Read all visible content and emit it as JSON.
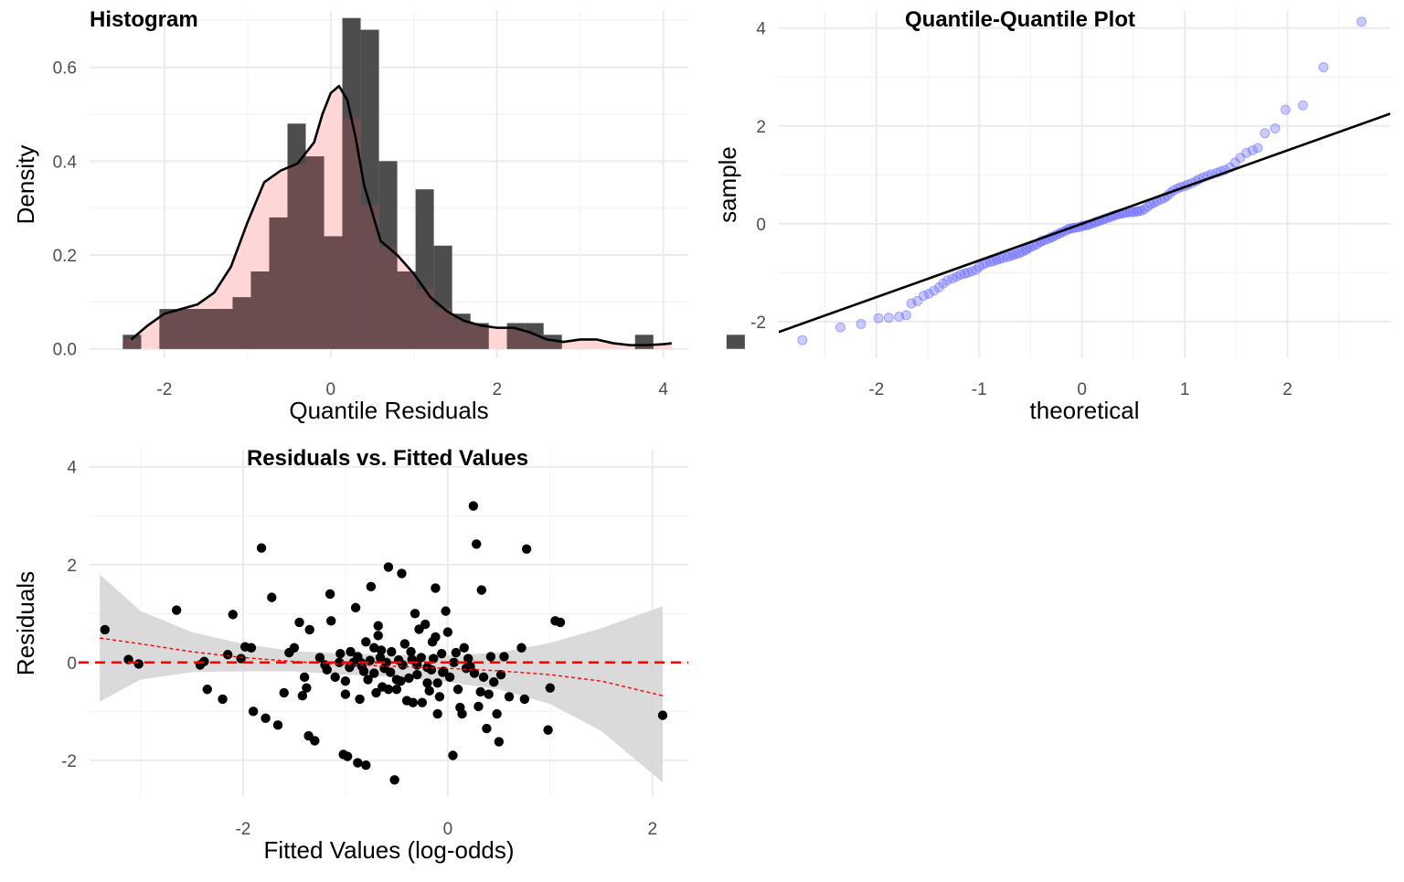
{
  "colors": {
    "hist_bar": "#4d4d4d",
    "hist_density_fill": "#ffd6d6",
    "hist_overlap": "#6b4c4f",
    "density_line": "#000000",
    "qq_point": "#6666ff",
    "qq_line": "#000000",
    "resid_point": "#000000",
    "zero_line": "#ff0000",
    "loess_line": "#ff0000",
    "ci_band": "#d3d3d3"
  },
  "chart_data": [
    {
      "type": "bar",
      "title": "Histogram",
      "xlabel": "Quantile Residuals",
      "ylabel": "Density",
      "xlim": [
        -2.9,
        4.3
      ],
      "ylim": [
        -0.02,
        0.72
      ],
      "xticks": [
        -2,
        0,
        2,
        4
      ],
      "yticks": [
        0.0,
        0.2,
        0.4,
        0.6
      ],
      "ytick_labels": [
        "0.0",
        "0.2",
        "0.4",
        "0.6"
      ],
      "bin_width": 0.22,
      "bin_start": -2.5,
      "values": [
        0.03,
        0.0,
        0.085,
        0.085,
        0.085,
        0.085,
        0.11,
        0.165,
        0.28,
        0.48,
        0.41,
        0.24,
        0.705,
        0.68,
        0.4,
        0.165,
        0.34,
        0.22,
        0.075,
        0.055,
        0.0,
        0.055,
        0.055,
        0.03,
        0.0,
        0.0,
        0.0,
        0.0,
        0.03,
        0.0,
        0.0,
        0.0,
        0.0,
        0.03
      ],
      "density_curve": {
        "x": [
          -2.4,
          -2.2,
          -2.0,
          -1.8,
          -1.6,
          -1.4,
          -1.2,
          -1.0,
          -0.8,
          -0.6,
          -0.4,
          -0.2,
          -0.1,
          0.0,
          0.1,
          0.2,
          0.3,
          0.4,
          0.6,
          0.8,
          1.0,
          1.2,
          1.4,
          1.6,
          1.8,
          2.0,
          2.2,
          2.4,
          2.6,
          2.8,
          3.0,
          3.2,
          3.4,
          3.6,
          3.8,
          4.0,
          4.1
        ],
        "y": [
          0.02,
          0.05,
          0.075,
          0.085,
          0.095,
          0.12,
          0.175,
          0.27,
          0.355,
          0.38,
          0.395,
          0.44,
          0.5,
          0.545,
          0.56,
          0.53,
          0.45,
          0.35,
          0.23,
          0.2,
          0.16,
          0.11,
          0.08,
          0.06,
          0.05,
          0.045,
          0.045,
          0.035,
          0.02,
          0.015,
          0.02,
          0.02,
          0.012,
          0.008,
          0.008,
          0.01,
          0.012
        ]
      }
    },
    {
      "type": "scatter",
      "title": "Quantile-Quantile Plot",
      "xlabel": "theoretical",
      "ylabel": "sample",
      "xlim": [
        -2.95,
        3.0
      ],
      "ylim": [
        -2.75,
        4.35
      ],
      "xticks": [
        -2,
        -1,
        0,
        1,
        2
      ],
      "yticks": [
        -2,
        0,
        2,
        4
      ],
      "points": [
        [
          -2.72,
          -2.38
        ],
        [
          -2.35,
          -2.12
        ],
        [
          -2.15,
          -2.05
        ],
        [
          -1.98,
          -1.93
        ],
        [
          -1.88,
          -1.92
        ],
        [
          -1.78,
          -1.9
        ],
        [
          -1.71,
          -1.87
        ],
        [
          -1.66,
          -1.63
        ],
        [
          -1.6,
          -1.58
        ],
        [
          -1.54,
          -1.47
        ],
        [
          -1.49,
          -1.43
        ],
        [
          -1.44,
          -1.37
        ],
        [
          -1.39,
          -1.3
        ],
        [
          -1.35,
          -1.22
        ],
        [
          -1.31,
          -1.16
        ],
        [
          -1.26,
          -1.12
        ],
        [
          -1.22,
          -1.08
        ],
        [
          -1.18,
          -1.04
        ],
        [
          -1.14,
          -1.02
        ],
        [
          -1.11,
          -1.0
        ],
        [
          -1.07,
          -0.97
        ],
        [
          -1.03,
          -0.94
        ],
        [
          -1.0,
          -0.88
        ],
        [
          -0.96,
          -0.83
        ],
        [
          -0.93,
          -0.8
        ],
        [
          -0.89,
          -0.78
        ],
        [
          -0.86,
          -0.76
        ],
        [
          -0.83,
          -0.74
        ],
        [
          -0.8,
          -0.72
        ],
        [
          -0.77,
          -0.7
        ],
        [
          -0.73,
          -0.68
        ],
        [
          -0.7,
          -0.66
        ],
        [
          -0.67,
          -0.64
        ],
        [
          -0.64,
          -0.62
        ],
        [
          -0.61,
          -0.6
        ],
        [
          -0.58,
          -0.57
        ],
        [
          -0.55,
          -0.54
        ],
        [
          -0.53,
          -0.51
        ],
        [
          -0.5,
          -0.48
        ],
        [
          -0.47,
          -0.45
        ],
        [
          -0.44,
          -0.42
        ],
        [
          -0.41,
          -0.38
        ],
        [
          -0.39,
          -0.35
        ],
        [
          -0.36,
          -0.33
        ],
        [
          -0.33,
          -0.31
        ],
        [
          -0.3,
          -0.28
        ],
        [
          -0.28,
          -0.26
        ],
        [
          -0.25,
          -0.23
        ],
        [
          -0.22,
          -0.2
        ],
        [
          -0.2,
          -0.18
        ],
        [
          -0.17,
          -0.15
        ],
        [
          -0.14,
          -0.12
        ],
        [
          -0.12,
          -0.1
        ],
        [
          -0.09,
          -0.09
        ],
        [
          -0.07,
          -0.08
        ],
        [
          -0.04,
          -0.07
        ],
        [
          -0.01,
          -0.06
        ],
        [
          0.01,
          -0.04
        ],
        [
          0.04,
          -0.03
        ],
        [
          0.06,
          -0.02
        ],
        [
          0.09,
          0.0
        ],
        [
          0.12,
          0.02
        ],
        [
          0.14,
          0.04
        ],
        [
          0.17,
          0.06
        ],
        [
          0.2,
          0.08
        ],
        [
          0.22,
          0.1
        ],
        [
          0.25,
          0.12
        ],
        [
          0.28,
          0.14
        ],
        [
          0.3,
          0.16
        ],
        [
          0.33,
          0.18
        ],
        [
          0.36,
          0.2
        ],
        [
          0.39,
          0.21
        ],
        [
          0.41,
          0.22
        ],
        [
          0.44,
          0.23
        ],
        [
          0.47,
          0.24
        ],
        [
          0.5,
          0.24
        ],
        [
          0.53,
          0.25
        ],
        [
          0.55,
          0.26
        ],
        [
          0.58,
          0.27
        ],
        [
          0.61,
          0.3
        ],
        [
          0.64,
          0.35
        ],
        [
          0.67,
          0.4
        ],
        [
          0.7,
          0.43
        ],
        [
          0.73,
          0.46
        ],
        [
          0.77,
          0.5
        ],
        [
          0.8,
          0.53
        ],
        [
          0.83,
          0.57
        ],
        [
          0.86,
          0.63
        ],
        [
          0.89,
          0.68
        ],
        [
          0.93,
          0.72
        ],
        [
          0.96,
          0.75
        ],
        [
          1.0,
          0.77
        ],
        [
          1.03,
          0.8
        ],
        [
          1.07,
          0.83
        ],
        [
          1.11,
          0.87
        ],
        [
          1.14,
          0.91
        ],
        [
          1.18,
          0.95
        ],
        [
          1.22,
          0.98
        ],
        [
          1.26,
          1.01
        ],
        [
          1.31,
          1.04
        ],
        [
          1.35,
          1.07
        ],
        [
          1.39,
          1.1
        ],
        [
          1.44,
          1.15
        ],
        [
          1.49,
          1.25
        ],
        [
          1.54,
          1.35
        ],
        [
          1.6,
          1.45
        ],
        [
          1.66,
          1.5
        ],
        [
          1.71,
          1.55
        ],
        [
          1.78,
          1.85
        ],
        [
          1.88,
          1.95
        ],
        [
          1.98,
          2.33
        ],
        [
          2.15,
          2.42
        ],
        [
          2.35,
          3.2
        ],
        [
          2.72,
          4.13
        ]
      ],
      "reference_line": {
        "intercept": 0.0,
        "slope": 0.75
      }
    },
    {
      "type": "scatter",
      "title": "Residuals vs. Fitted Values",
      "xlabel": "Fitted Values (log-odds)",
      "ylabel": "Residuals",
      "xlim": [
        -3.5,
        2.35
      ],
      "ylim": [
        -2.75,
        4.35
      ],
      "xticks": [
        -2,
        0,
        2
      ],
      "yticks": [
        -2,
        0,
        2,
        4
      ],
      "points": [
        [
          -3.35,
          0.67
        ],
        [
          -3.12,
          0.06
        ],
        [
          -3.02,
          -0.03
        ],
        [
          -2.65,
          1.07
        ],
        [
          -2.42,
          -0.05
        ],
        [
          -2.35,
          -0.55
        ],
        [
          -2.38,
          0.02
        ],
        [
          -2.2,
          -0.75
        ],
        [
          -2.15,
          0.16
        ],
        [
          -2.1,
          0.98
        ],
        [
          -2.02,
          0.08
        ],
        [
          -1.98,
          0.32
        ],
        [
          -1.92,
          0.3
        ],
        [
          -1.9,
          -1.0
        ],
        [
          -1.82,
          2.34
        ],
        [
          -1.78,
          -1.14
        ],
        [
          -1.72,
          1.33
        ],
        [
          -1.66,
          -1.28
        ],
        [
          -1.55,
          0.2
        ],
        [
          -1.6,
          -0.62
        ],
        [
          -1.5,
          0.3
        ],
        [
          -1.45,
          0.82
        ],
        [
          -1.42,
          -0.68
        ],
        [
          -1.38,
          -0.52
        ],
        [
          -1.35,
          0.67
        ],
        [
          -1.36,
          -1.5
        ],
        [
          -1.3,
          -1.6
        ],
        [
          -1.2,
          -0.05
        ],
        [
          -1.15,
          1.4
        ],
        [
          -1.14,
          0.85
        ],
        [
          -1.1,
          -0.3
        ],
        [
          -1.06,
          0.0
        ],
        [
          -1.02,
          -1.88
        ],
        [
          -1.0,
          -0.38
        ],
        [
          -0.98,
          -1.92
        ],
        [
          -0.95,
          0.22
        ],
        [
          -0.9,
          1.12
        ],
        [
          -0.88,
          -2.05
        ],
        [
          -0.85,
          0.0
        ],
        [
          -0.82,
          -0.18
        ],
        [
          -0.8,
          -2.1
        ],
        [
          -0.8,
          0.42
        ],
        [
          -0.75,
          1.55
        ],
        [
          -0.78,
          -0.35
        ],
        [
          -0.72,
          0.3
        ],
        [
          -0.7,
          -0.62
        ],
        [
          -0.68,
          0.75
        ],
        [
          -0.64,
          -0.5
        ],
        [
          -0.6,
          0.0
        ],
        [
          -0.58,
          1.95
        ],
        [
          -0.55,
          0.22
        ],
        [
          -0.52,
          -2.4
        ],
        [
          -0.5,
          -0.35
        ],
        [
          -0.5,
          -0.55
        ],
        [
          -0.45,
          1.82
        ],
        [
          -0.42,
          0.38
        ],
        [
          -0.4,
          -0.78
        ],
        [
          -0.38,
          -0.32
        ],
        [
          -0.35,
          0.06
        ],
        [
          -0.32,
          1.0
        ],
        [
          -0.3,
          -0.25
        ],
        [
          -0.28,
          0.68
        ],
        [
          -0.25,
          -0.82
        ],
        [
          -0.22,
          0.78
        ],
        [
          -0.2,
          -0.1
        ],
        [
          -0.18,
          -0.58
        ],
        [
          -0.15,
          0.42
        ],
        [
          -0.12,
          1.52
        ],
        [
          -0.1,
          -0.42
        ],
        [
          -0.08,
          -0.7
        ],
        [
          -0.06,
          0.18
        ],
        [
          -0.05,
          -0.2
        ],
        [
          -0.02,
          1.05
        ],
        [
          0.0,
          0.62
        ],
        [
          0.02,
          -0.3
        ],
        [
          0.05,
          -1.9
        ],
        [
          0.08,
          0.2
        ],
        [
          0.1,
          -0.55
        ],
        [
          0.12,
          -0.92
        ],
        [
          0.14,
          -1.05
        ],
        [
          0.16,
          0.3
        ],
        [
          0.2,
          0.08
        ],
        [
          0.22,
          -0.08
        ],
        [
          0.25,
          3.2
        ],
        [
          0.28,
          2.42
        ],
        [
          0.3,
          -0.9
        ],
        [
          0.32,
          -0.6
        ],
        [
          0.33,
          1.48
        ],
        [
          0.38,
          -1.35
        ],
        [
          0.4,
          -0.65
        ],
        [
          0.42,
          0.12
        ],
        [
          0.45,
          -0.4
        ],
        [
          0.48,
          -1.05
        ],
        [
          0.5,
          -1.62
        ],
        [
          0.52,
          -0.25
        ],
        [
          0.55,
          0.12
        ],
        [
          0.6,
          -0.7
        ],
        [
          0.72,
          0.3
        ],
        [
          0.75,
          -0.75
        ],
        [
          0.77,
          2.32
        ],
        [
          0.98,
          -1.38
        ],
        [
          1.0,
          -0.52
        ],
        [
          1.05,
          0.85
        ],
        [
          1.1,
          0.82
        ],
        [
          2.1,
          -1.08
        ],
        [
          -0.92,
          0.0
        ],
        [
          -0.88,
          0.12
        ],
        [
          -0.84,
          -0.08
        ],
        [
          -0.76,
          0.04
        ],
        [
          -0.66,
          0.1
        ],
        [
          -0.62,
          -0.12
        ],
        [
          -0.56,
          -0.2
        ],
        [
          -0.44,
          -0.05
        ],
        [
          -0.36,
          0.22
        ],
        [
          -0.26,
          0.1
        ],
        [
          -0.16,
          -0.15
        ],
        [
          -0.04,
          -0.18
        ],
        [
          0.06,
          0.0
        ],
        [
          0.18,
          -0.12
        ],
        [
          -1.25,
          0.1
        ],
        [
          -1.18,
          -0.15
        ],
        [
          -1.05,
          0.18
        ],
        [
          -0.96,
          -0.1
        ],
        [
          -0.72,
          -0.22
        ],
        [
          -0.48,
          0.05
        ],
        [
          -0.3,
          -0.05
        ],
        [
          -0.14,
          0.08
        ],
        [
          0.26,
          -0.22
        ],
        [
          0.35,
          -0.3
        ],
        [
          -0.58,
          -0.55
        ],
        [
          -0.46,
          -0.38
        ],
        [
          -0.2,
          -0.42
        ],
        [
          -0.65,
          0.25
        ],
        [
          -1.4,
          -0.3
        ],
        [
          -1.0,
          -0.65
        ],
        [
          -0.86,
          -0.75
        ],
        [
          -0.34,
          -0.82
        ],
        [
          -0.1,
          -1.05
        ],
        [
          -0.68,
          0.55
        ],
        [
          -0.12,
          0.52
        ]
      ],
      "zero_line": 0,
      "loess": {
        "x": [
          -3.4,
          -3.0,
          -2.5,
          -2.0,
          -1.5,
          -1.0,
          -0.5,
          0.0,
          0.5,
          1.0,
          1.5,
          2.1
        ],
        "y": [
          0.5,
          0.38,
          0.22,
          0.1,
          0.02,
          -0.04,
          -0.08,
          -0.12,
          -0.17,
          -0.25,
          -0.38,
          -0.68
        ],
        "upper": [
          1.8,
          1.05,
          0.62,
          0.38,
          0.23,
          0.18,
          0.16,
          0.15,
          0.2,
          0.4,
          0.7,
          1.15
        ],
        "lower": [
          -0.8,
          -0.35,
          -0.2,
          -0.18,
          -0.18,
          -0.25,
          -0.3,
          -0.4,
          -0.55,
          -0.85,
          -1.4,
          -2.45
        ]
      }
    }
  ]
}
